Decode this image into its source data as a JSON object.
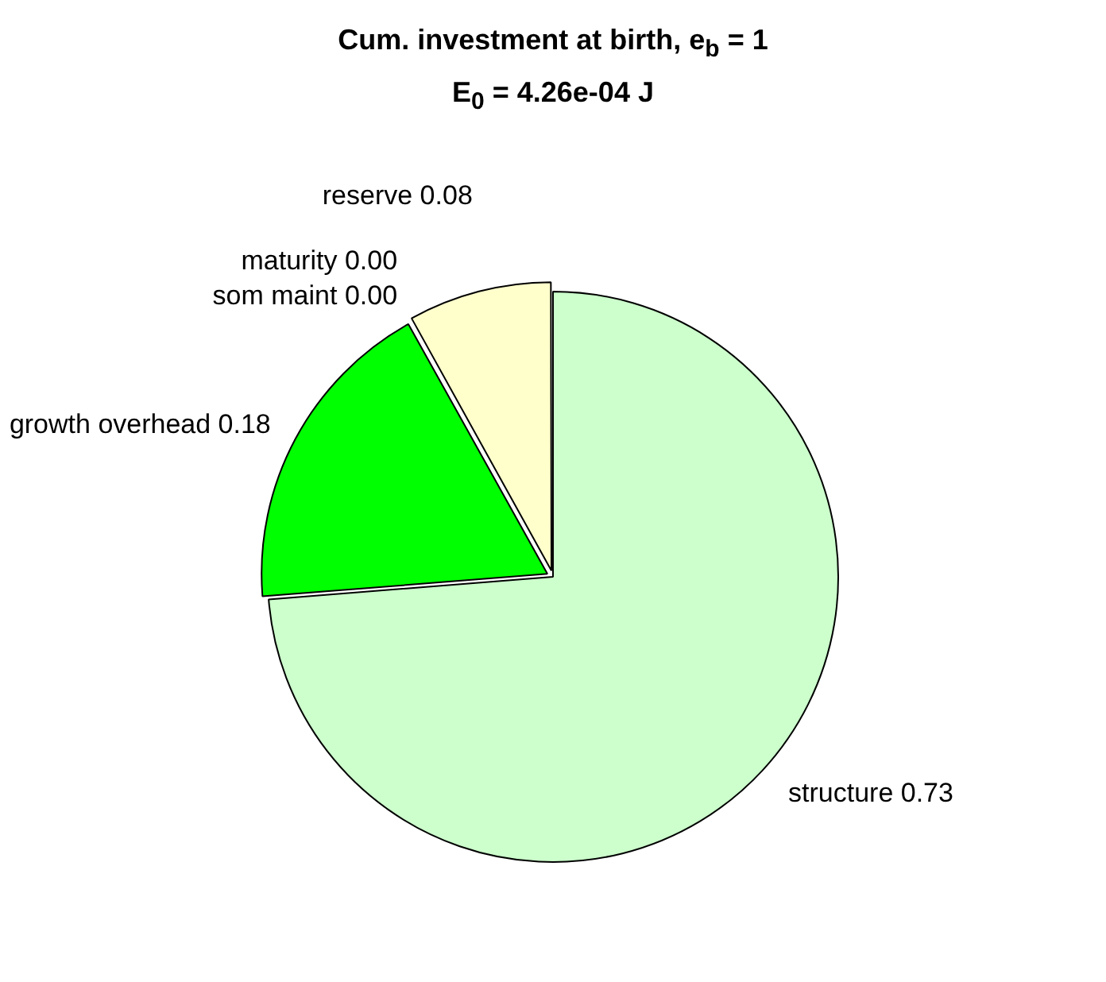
{
  "chart_data": {
    "type": "pie",
    "title": "Cum. investment at birth, e$_{b}$ = 1",
    "subtitle": "E$_{0}$ = 4.26e-04 J",
    "categories": [
      "structure",
      "growth overhead",
      "som maint",
      "maturity",
      "reserve"
    ],
    "values": [
      0.73,
      0.18,
      0.0,
      0.0,
      0.08
    ],
    "value_labels": [
      "0.73",
      "0.18",
      "0.00",
      "0.00",
      "0.08"
    ],
    "colors": [
      "#ccffcc",
      "#00ff00",
      "#800000",
      "#400000",
      "#ffffcc"
    ],
    "legend": false
  }
}
